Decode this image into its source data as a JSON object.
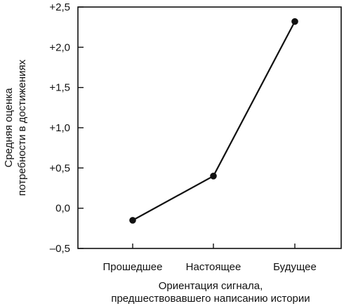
{
  "chart_data": {
    "type": "line",
    "title": "",
    "xlabel_lines": [
      "Ориентация сигнала,",
      "предшествовавшего написанию истории"
    ],
    "ylabel_lines": [
      "Средняя оценка",
      "потребности в достижениях"
    ],
    "categories": [
      "Прошедшее",
      "Настоящее",
      "Будущее"
    ],
    "series": [
      {
        "values": [
          -0.15,
          0.4,
          2.32
        ]
      }
    ],
    "ylim": [
      -0.5,
      2.5
    ],
    "yticks": [
      -0.5,
      0.0,
      0.5,
      1.0,
      1.5,
      2.0,
      2.5
    ],
    "ytick_labels": [
      "–0,5",
      "0,0",
      "+0,5",
      "+1,0",
      "+1,5",
      "+2,0",
      "+2,5"
    ],
    "grid": false,
    "legend": "none"
  }
}
